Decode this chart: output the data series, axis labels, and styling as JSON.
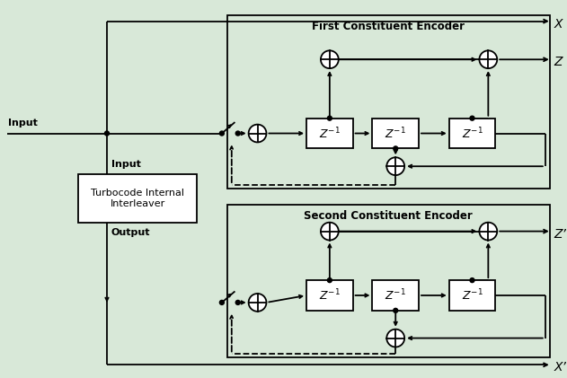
{
  "bg_color": "#d8e8d8",
  "line_color": "#000000",
  "box_color": "#ffffff",
  "first_encoder_label": "First Constituent Encoder",
  "second_encoder_label": "Second Constituent Encoder",
  "interleaver_label": "Turbocode Internal\nInterleaver",
  "input_label": "Input",
  "input_label2": "Input",
  "output_label": "Output",
  "x_label": "X",
  "z_label": "Z",
  "z_prime_label": "Z’",
  "x_prime_label": "X’"
}
